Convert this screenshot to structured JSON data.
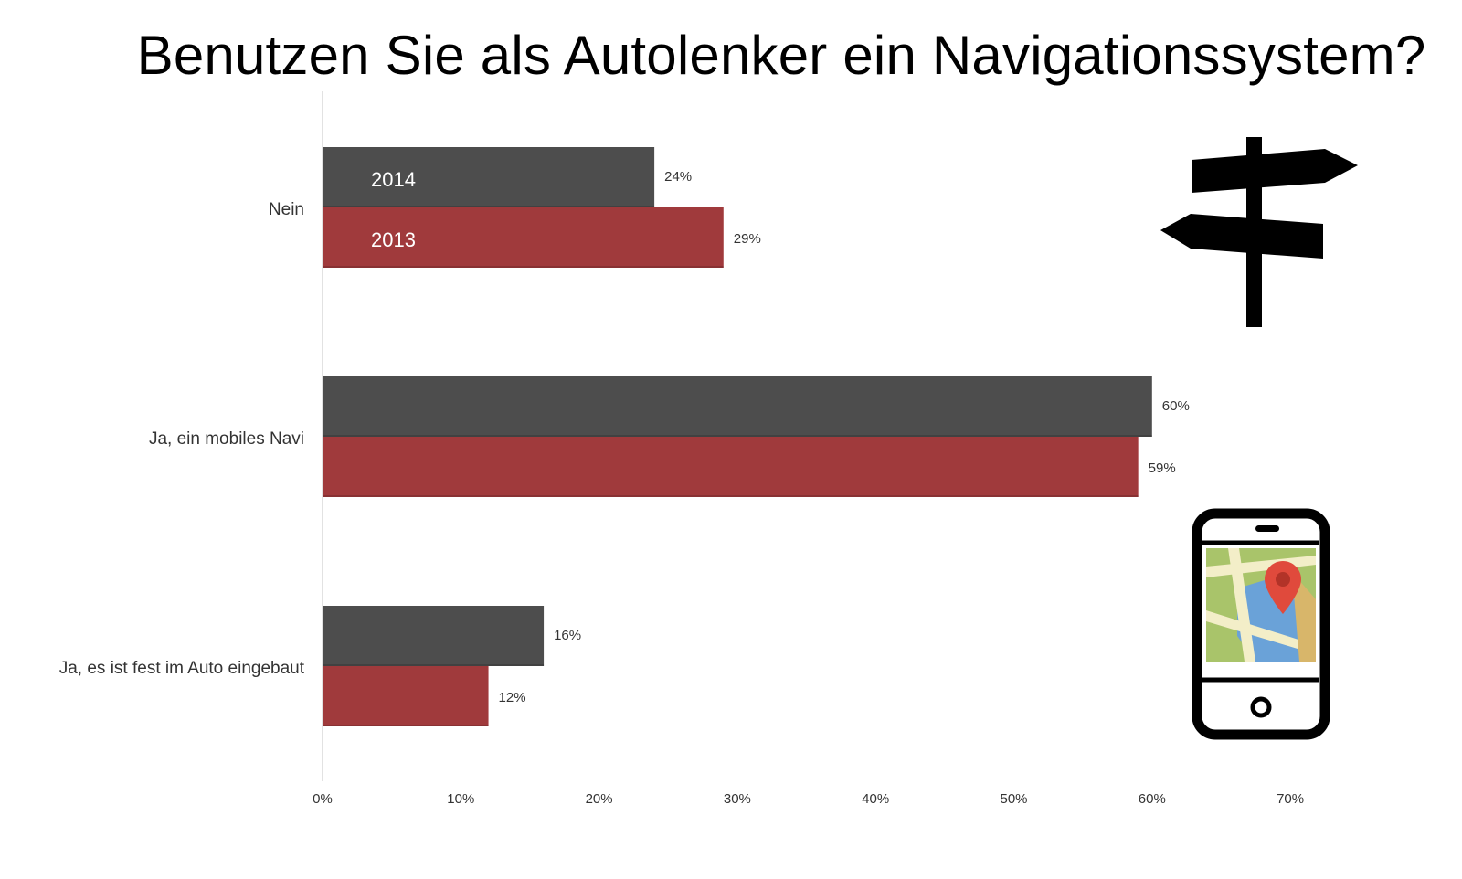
{
  "title": "Benutzen Sie als Autolenker ein Navigationssystem?",
  "chart_data": {
    "type": "bar",
    "orientation": "horizontal",
    "title": "Benutzen Sie als Autolenker ein Navigationssystem?",
    "categories": [
      "Nein",
      "Ja, ein mobiles Navi",
      "Ja, es ist fest im Auto eingebaut"
    ],
    "series": [
      {
        "name": "2014",
        "color": "#4d4d4d",
        "values": [
          24,
          60,
          16
        ],
        "labels": [
          "24%",
          "60%",
          "16%"
        ]
      },
      {
        "name": "2013",
        "color": "#a03a3c",
        "values": [
          29,
          59,
          12
        ],
        "labels": [
          "29%",
          "59%",
          "12%"
        ]
      }
    ],
    "xlim": [
      0,
      70
    ],
    "xticks": [
      0,
      10,
      20,
      30,
      40,
      50,
      60,
      70
    ],
    "xtick_labels": [
      "0%",
      "10%",
      "20%",
      "30%",
      "40%",
      "50%",
      "60%",
      "70%"
    ],
    "xlabel": "",
    "ylabel": "",
    "legend": "inside first bars",
    "grid": false
  },
  "icons": [
    "signpost-icon",
    "smartphone-map-icon"
  ],
  "colors": {
    "pin": "#e04a3c",
    "map_green": "#a9c46a",
    "map_blue": "#6aa2d8",
    "map_road": "#f3eec8",
    "map_tan": "#d8b66a"
  }
}
